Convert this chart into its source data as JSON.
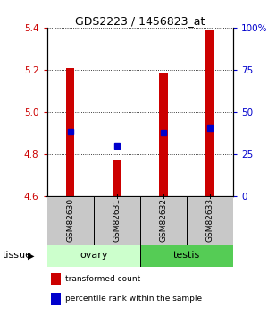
{
  "title": "GDS2223 / 1456823_at",
  "samples": [
    "GSM82630",
    "GSM82631",
    "GSM82632",
    "GSM82633"
  ],
  "bar_values": [
    5.21,
    4.77,
    5.185,
    5.39
  ],
  "bar_base": 4.6,
  "percentile_values": [
    4.905,
    4.84,
    4.902,
    4.923
  ],
  "ylim": [
    4.6,
    5.4
  ],
  "yticks_left": [
    4.6,
    4.8,
    5.0,
    5.2,
    5.4
  ],
  "yticks_right_pct": [
    0,
    25,
    50,
    75,
    100
  ],
  "bar_color": "#cc0000",
  "percentile_color": "#0000cc",
  "tissue_groups": [
    {
      "label": "ovary",
      "indices": [
        0,
        1
      ],
      "color": "#ccffcc"
    },
    {
      "label": "testis",
      "indices": [
        2,
        3
      ],
      "color": "#55cc55"
    }
  ],
  "legend_bar_label": "transformed count",
  "legend_pct_label": "percentile rank within the sample",
  "tissue_label": "tissue",
  "sample_box_color": "#c8c8c8"
}
